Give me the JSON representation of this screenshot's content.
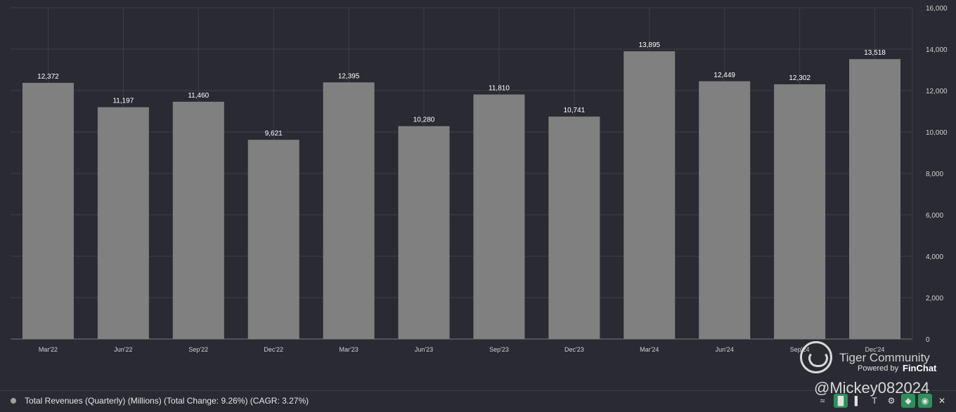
{
  "chart_data": {
    "type": "bar",
    "categories": [
      "Mar'22",
      "Jun'22",
      "Sep'22",
      "Dec'22",
      "Mar'23",
      "Jun'23",
      "Sep'23",
      "Dec'23",
      "Mar'24",
      "Jun'24",
      "Sep'24",
      "Dec'24"
    ],
    "values": [
      12372,
      11197,
      11460,
      9621,
      12395,
      10280,
      11810,
      10741,
      13895,
      12449,
      12302,
      13518
    ],
    "data_labels": [
      "12,372",
      "11,197",
      "11,460",
      "9,621",
      "12,395",
      "10,280",
      "11,810",
      "10,741",
      "13,895",
      "12,449",
      "12,302",
      "13,518"
    ],
    "y_ticks": [
      "0",
      "2,000",
      "4,000",
      "6,000",
      "8,000",
      "10,000",
      "12,000",
      "14,000",
      "16,000"
    ],
    "ylim": [
      0,
      16000
    ],
    "grid": true,
    "y_axis_side": "right",
    "legend_placement": "bottom-left",
    "colors": {
      "bar": "#808080",
      "background": "#2a2a33",
      "grid": "#3d3d47",
      "text": "#e6e6e6"
    }
  },
  "legend": {
    "label": "Total Revenues (Quarterly) (Millions) (Total Change: 9.26%) (CAGR: 3.27%)"
  },
  "watermark": {
    "title": "Tiger Community",
    "powered_by": "Powered by",
    "brand": "FinChat",
    "user": "@Mickey082024"
  },
  "toolbar": {
    "icons": [
      "trend-icon",
      "bar-chart-icon",
      "bar-chart-small-icon",
      "text-cursor-icon",
      "gear-icon",
      "tag-icon",
      "eye-icon",
      "close-icon"
    ]
  }
}
